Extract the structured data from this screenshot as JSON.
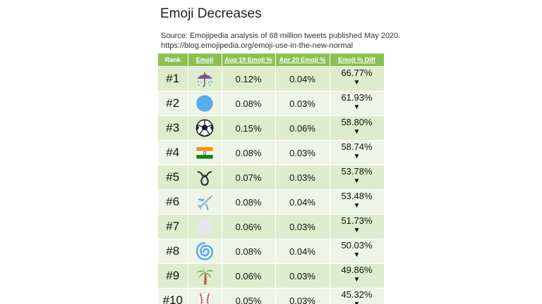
{
  "title": "Emoji Decreases",
  "source_line1": "Source: Emojipedia analysis of 68 million tweets published May 2020.",
  "source_line2": "https://blog.emojipedia.org/emoji-use-in-the-new-normal",
  "headers": {
    "rank": "Rank",
    "emoji": "Emoji",
    "aug": "Aug 19 Emoji %",
    "apr": "Apr 20 Emoji %",
    "diff": "Emoji % Diff"
  },
  "rows": [
    {
      "rank": "#1",
      "icon": "umbrella-with-rain-icon",
      "aug": "0.12%",
      "apr": "0.04%",
      "diff": "66.77%",
      "arrow": "▼"
    },
    {
      "rank": "#2",
      "icon": "blue-circle-icon",
      "aug": "0.08%",
      "apr": "0.03%",
      "diff": "61.93%",
      "arrow": "▼"
    },
    {
      "rank": "#3",
      "icon": "soccer-ball-icon",
      "aug": "0.15%",
      "apr": "0.06%",
      "diff": "58.80%",
      "arrow": "▼"
    },
    {
      "rank": "#4",
      "icon": "india-flag-icon",
      "aug": "0.08%",
      "apr": "0.03%",
      "diff": "58.74%",
      "arrow": "▼"
    },
    {
      "rank": "#5",
      "icon": "curly-loop-icon",
      "aug": "0.07%",
      "apr": "0.03%",
      "diff": "53.78%",
      "arrow": "▼"
    },
    {
      "rank": "#6",
      "icon": "airplane-icon",
      "aug": "0.08%",
      "apr": "0.04%",
      "diff": "53.48%",
      "arrow": "▼"
    },
    {
      "rank": "#7",
      "icon": "white-circle-icon",
      "aug": "0.06%",
      "apr": "0.03%",
      "diff": "51.73%",
      "arrow": "▼"
    },
    {
      "rank": "#8",
      "icon": "cyclone-icon",
      "aug": "0.08%",
      "apr": "0.04%",
      "diff": "50.03%",
      "arrow": "▼"
    },
    {
      "rank": "#9",
      "icon": "palm-tree-icon",
      "aug": "0.06%",
      "apr": "0.03%",
      "diff": "49.86%",
      "arrow": "▼"
    },
    {
      "rank": "#10",
      "icon": "baseball-icon",
      "aug": "0.05%",
      "apr": "0.03%",
      "diff": "45.32%",
      "arrow": "▼"
    }
  ],
  "colors": {
    "header_bg": "#8cc152",
    "row_odd": "#dceccd",
    "row_even": "#eef5e7"
  }
}
